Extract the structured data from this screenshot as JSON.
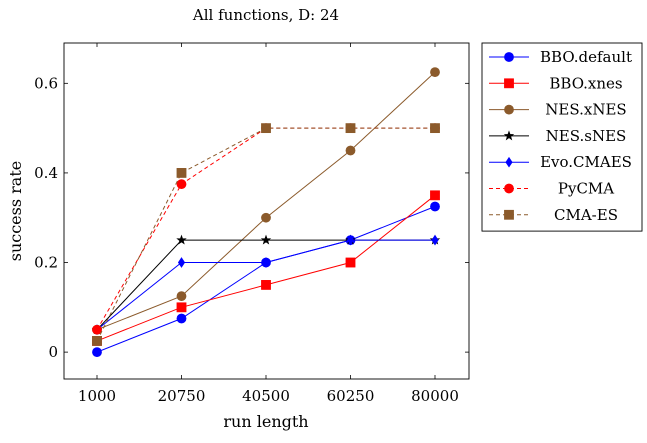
{
  "chart_data": {
    "type": "line",
    "title": "All functions, D: 24",
    "xlabel": "run length",
    "ylabel": "success rate",
    "x": [
      1000,
      20750,
      40500,
      60250,
      80000
    ],
    "x_ticks": [
      "1000",
      "20750",
      "40500",
      "60250",
      "80000"
    ],
    "y_ticks": [
      "0",
      "0.2",
      "0.4",
      "0.6"
    ],
    "ylim": [
      -0.06,
      0.69
    ],
    "grid": false,
    "legend_position": "outside-right",
    "series": [
      {
        "name": "BBO.default",
        "color": "#0000ff",
        "marker": "circle",
        "dashed": false,
        "values": [
          0.0,
          0.075,
          0.2,
          0.25,
          0.325
        ]
      },
      {
        "name": "BBO.xnes",
        "color": "#ff0000",
        "marker": "square",
        "dashed": false,
        "values": [
          0.025,
          0.1,
          0.15,
          0.2,
          0.35
        ]
      },
      {
        "name": "NES.xNES",
        "color": "#8b5a2b",
        "marker": "circle",
        "dashed": false,
        "values": [
          0.05,
          0.125,
          0.3,
          0.45,
          0.625
        ]
      },
      {
        "name": "NES.sNES",
        "color": "#000000",
        "marker": "star",
        "dashed": false,
        "values": [
          0.05,
          0.25,
          0.25,
          0.25,
          0.25
        ]
      },
      {
        "name": "Evo.CMAES",
        "color": "#0000ff",
        "marker": "diamond",
        "dashed": false,
        "values": [
          0.05,
          0.2,
          0.2,
          0.25,
          0.25
        ]
      },
      {
        "name": "PyCMA",
        "color": "#ff0000",
        "marker": "circle",
        "dashed": true,
        "values": [
          0.05,
          0.375,
          0.5,
          0.5,
          0.5
        ]
      },
      {
        "name": "CMA-ES",
        "color": "#8b5a2b",
        "marker": "square",
        "dashed": true,
        "values": [
          0.025,
          0.4,
          0.5,
          0.5,
          0.5
        ]
      }
    ]
  }
}
